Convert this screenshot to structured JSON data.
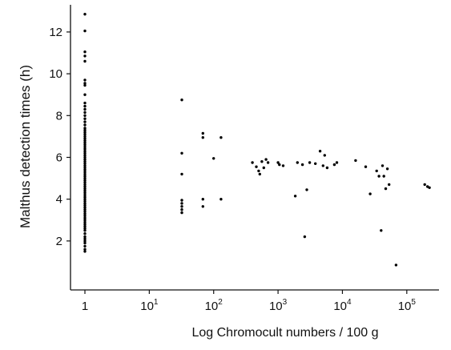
{
  "chart_data": {
    "type": "scatter",
    "title": "",
    "xlabel": "Log Chromocult numbers / 100  g",
    "ylabel": "Malthus detection times (h)",
    "x_scale": "log",
    "xlim": [
      1,
      316228
    ],
    "ylim": [
      0.5,
      13.3
    ],
    "x_ticks": [
      {
        "value": 1,
        "base": "1",
        "exp": ""
      },
      {
        "value": 10,
        "base": "10",
        "exp": "1"
      },
      {
        "value": 100,
        "base": "10",
        "exp": "2"
      },
      {
        "value": 1000,
        "base": "10",
        "exp": "3"
      },
      {
        "value": 10000,
        "base": "10",
        "exp": "4"
      },
      {
        "value": 100000,
        "base": "10",
        "exp": "5"
      }
    ],
    "y_ticks": [
      2,
      4,
      6,
      8,
      10,
      12
    ],
    "grid": false,
    "series": [
      {
        "points": [
          [
            1,
            12.85
          ],
          [
            1,
            12.05
          ],
          [
            1,
            11.05
          ],
          [
            1,
            10.85
          ],
          [
            1,
            10.6
          ],
          [
            1,
            9.7
          ],
          [
            1,
            9.55
          ],
          [
            1,
            9.45
          ],
          [
            1,
            9.0
          ],
          [
            1,
            8.6
          ],
          [
            1,
            8.45
          ],
          [
            1,
            8.3
          ],
          [
            1,
            8.15
          ],
          [
            1,
            8.0
          ],
          [
            1,
            7.85
          ],
          [
            1,
            7.7
          ],
          [
            1,
            7.55
          ],
          [
            1,
            7.4
          ],
          [
            1,
            7.3
          ],
          [
            1,
            7.2
          ],
          [
            1,
            7.1
          ],
          [
            1,
            7.0
          ],
          [
            1,
            6.9
          ],
          [
            1,
            6.8
          ],
          [
            1,
            6.7
          ],
          [
            1,
            6.6
          ],
          [
            1,
            6.5
          ],
          [
            1,
            6.4
          ],
          [
            1,
            6.3
          ],
          [
            1,
            6.2
          ],
          [
            1,
            6.1
          ],
          [
            1,
            6.0
          ],
          [
            1,
            5.9
          ],
          [
            1,
            5.8
          ],
          [
            1,
            5.7
          ],
          [
            1,
            5.6
          ],
          [
            1,
            5.5
          ],
          [
            1,
            5.4
          ],
          [
            1,
            5.3
          ],
          [
            1,
            5.2
          ],
          [
            1,
            5.1
          ],
          [
            1,
            5.0
          ],
          [
            1,
            4.9
          ],
          [
            1,
            4.8
          ],
          [
            1,
            4.7
          ],
          [
            1,
            4.6
          ],
          [
            1,
            4.5
          ],
          [
            1,
            4.4
          ],
          [
            1,
            4.3
          ],
          [
            1,
            4.2
          ],
          [
            1,
            4.1
          ],
          [
            1,
            4.0
          ],
          [
            1,
            3.9
          ],
          [
            1,
            3.8
          ],
          [
            1,
            3.7
          ],
          [
            1,
            3.6
          ],
          [
            1,
            3.5
          ],
          [
            1,
            3.4
          ],
          [
            1,
            3.3
          ],
          [
            1,
            3.2
          ],
          [
            1,
            3.1
          ],
          [
            1,
            3.0
          ],
          [
            1,
            2.9
          ],
          [
            1,
            2.8
          ],
          [
            1,
            2.7
          ],
          [
            1,
            2.6
          ],
          [
            1,
            2.5
          ],
          [
            1,
            2.35
          ],
          [
            1,
            2.2
          ],
          [
            1,
            2.1
          ],
          [
            1,
            2.0
          ],
          [
            1,
            1.9
          ],
          [
            1,
            1.75
          ],
          [
            1,
            1.6
          ],
          [
            1,
            1.5
          ],
          [
            32,
            8.75
          ],
          [
            32,
            6.2
          ],
          [
            32,
            5.2
          ],
          [
            32,
            3.95
          ],
          [
            32,
            3.8
          ],
          [
            32,
            3.65
          ],
          [
            32,
            3.5
          ],
          [
            32,
            3.35
          ],
          [
            68,
            7.15
          ],
          [
            68,
            6.95
          ],
          [
            68,
            4.0
          ],
          [
            68,
            3.65
          ],
          [
            100,
            5.95
          ],
          [
            130,
            6.95
          ],
          [
            130,
            4.0
          ],
          [
            400,
            5.75
          ],
          [
            460,
            5.55
          ],
          [
            500,
            5.35
          ],
          [
            520,
            5.2
          ],
          [
            560,
            5.8
          ],
          [
            600,
            5.5
          ],
          [
            650,
            5.9
          ],
          [
            700,
            5.75
          ],
          [
            1000,
            5.75
          ],
          [
            1050,
            5.65
          ],
          [
            1200,
            5.6
          ],
          [
            1850,
            4.15
          ],
          [
            2000,
            5.75
          ],
          [
            2400,
            5.65
          ],
          [
            2600,
            2.2
          ],
          [
            2800,
            4.45
          ],
          [
            3100,
            5.75
          ],
          [
            3800,
            5.7
          ],
          [
            4500,
            6.3
          ],
          [
            5000,
            5.6
          ],
          [
            5300,
            6.1
          ],
          [
            5800,
            5.5
          ],
          [
            7500,
            5.65
          ],
          [
            8200,
            5.75
          ],
          [
            16000,
            5.85
          ],
          [
            23000,
            5.55
          ],
          [
            27000,
            4.25
          ],
          [
            34000,
            5.35
          ],
          [
            37000,
            5.1
          ],
          [
            40000,
            2.5
          ],
          [
            42000,
            5.6
          ],
          [
            44000,
            5.1
          ],
          [
            47000,
            4.5
          ],
          [
            50000,
            5.45
          ],
          [
            53000,
            4.7
          ],
          [
            68000,
            0.85
          ],
          [
            190000,
            4.7
          ],
          [
            210000,
            4.6
          ],
          [
            225000,
            4.55
          ]
        ]
      }
    ]
  }
}
